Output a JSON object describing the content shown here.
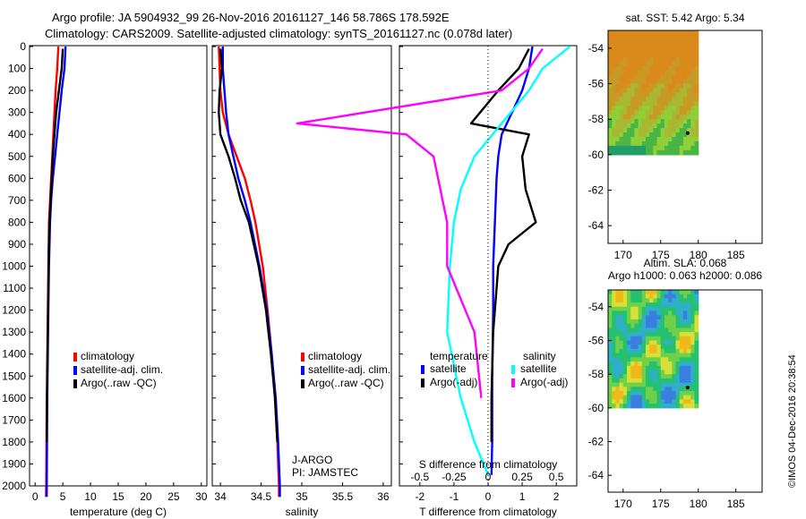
{
  "header": {
    "line1": "Argo profile: JA 5904932_99 26-Nov-2016 20161127_146 58.786S 178.592E",
    "line2": "Climatology: CARS2009. Satellite-adjusted climatology: synTS_20161127.nc (0.078d later)"
  },
  "footer_stamp": "©IMOS 04-Dec-2016 20:38:54",
  "colors": {
    "climatology": "#ff0000",
    "satellite": "#0000ff",
    "argo": "#000000",
    "satellite_s": "#00ffff",
    "argo_s": "#ff00ff"
  },
  "chart_data": [
    {
      "id": "temperature",
      "type": "line",
      "xlabel": "temperature (deg C)",
      "xlim": [
        -1,
        31
      ],
      "xticks": [
        0,
        5,
        10,
        15,
        20,
        25,
        30
      ],
      "ylim": [
        2060,
        0
      ],
      "yticks": [
        0,
        100,
        200,
        300,
        400,
        500,
        600,
        700,
        800,
        900,
        1000,
        1100,
        1200,
        1300,
        1400,
        1500,
        1600,
        1700,
        1800,
        1900,
        2000
      ],
      "legend": [
        "climatology",
        "satellite-adj. clim.",
        "Argo(..raw -QC)"
      ],
      "series": [
        {
          "name": "climatology",
          "x": [
            4.2,
            4.0,
            3.7,
            3.5,
            3.3,
            3.1,
            2.9,
            2.7,
            2.5,
            2.4,
            2.3,
            2.2,
            2.1,
            2.05,
            2.0,
            1.95
          ],
          "y": [
            0,
            100,
            200,
            300,
            400,
            500,
            600,
            700,
            800,
            1000,
            1200,
            1400,
            1600,
            1800,
            2000,
            2050
          ]
        },
        {
          "name": "satellite-adj. clim.",
          "x": [
            5.5,
            5.3,
            4.8,
            4.4,
            4.0,
            3.6,
            3.2,
            2.9,
            2.7,
            2.5,
            2.4,
            2.3,
            2.2,
            2.15,
            2.1,
            2.1
          ],
          "y": [
            0,
            100,
            200,
            300,
            400,
            500,
            600,
            700,
            800,
            1000,
            1200,
            1400,
            1600,
            1800,
            2000,
            2050
          ]
        },
        {
          "name": "Argo(..raw -QC)",
          "x": [
            5.0,
            4.8,
            4.3,
            3.8,
            3.5,
            3.2,
            3.0,
            2.8,
            2.6,
            2.45,
            2.35,
            2.25,
            2.15,
            2.1
          ],
          "y": [
            10,
            100,
            200,
            300,
            400,
            500,
            600,
            700,
            800,
            1000,
            1200,
            1400,
            1600,
            1800
          ]
        }
      ]
    },
    {
      "id": "salinity",
      "type": "line",
      "xlabel": "salinity",
      "xlim": [
        33.9,
        36.1
      ],
      "xticks": [
        34,
        34.5,
        35,
        35.5,
        36
      ],
      "ylim": [
        2060,
        0
      ],
      "legend": [
        "climatology",
        "satellite-adj. clim.",
        "Argo(..raw -QC)"
      ],
      "annotations": [
        "J-ARGO",
        "PI: JAMSTEC"
      ],
      "series": [
        {
          "name": "climatology",
          "x": [
            33.98,
            33.99,
            34.0,
            34.03,
            34.1,
            34.2,
            34.3,
            34.37,
            34.43,
            34.52,
            34.58,
            34.63,
            34.67,
            34.7,
            34.72,
            34.72
          ],
          "y": [
            0,
            100,
            200,
            300,
            400,
            500,
            600,
            700,
            800,
            1000,
            1200,
            1400,
            1600,
            1800,
            2000,
            2050
          ]
        },
        {
          "name": "satellite-adj. clim.",
          "x": [
            34.03,
            34.03,
            34.05,
            34.07,
            34.1,
            34.16,
            34.22,
            34.3,
            34.37,
            34.48,
            34.57,
            34.63,
            34.68,
            34.71,
            34.73,
            34.73
          ],
          "y": [
            0,
            100,
            200,
            300,
            400,
            500,
            600,
            700,
            800,
            1000,
            1200,
            1400,
            1600,
            1800,
            2000,
            2050
          ]
        },
        {
          "name": "Argo(..raw -QC)",
          "x": [
            34.0,
            34.02,
            33.99,
            33.98,
            34.0,
            34.1,
            34.18,
            34.25,
            34.35,
            34.47,
            34.56,
            34.62,
            34.67,
            34.7
          ],
          "y": [
            10,
            100,
            200,
            300,
            400,
            500,
            600,
            700,
            800,
            1000,
            1200,
            1400,
            1600,
            1800
          ]
        }
      ]
    },
    {
      "id": "differences",
      "type": "line",
      "xlabel": "T difference from climatology",
      "xlabel2": "S difference from climatology",
      "xlim": [
        -2.6,
        2.6
      ],
      "xticks": [
        -2,
        -1,
        0,
        1,
        2
      ],
      "xticks_s": [
        "-0.5",
        "-0.25",
        "0",
        "0.25",
        "0.5"
      ],
      "ylim": [
        2060,
        0
      ],
      "legend_headers": [
        "temperature",
        "salinity"
      ],
      "legend": [
        "satellite",
        "Argo(-adj)",
        "satellite",
        "Argo(-adj)"
      ],
      "series": [
        {
          "name": "satellite",
          "x": [
            1.3,
            1.2,
            1.0,
            0.7,
            0.4,
            0.3,
            0.25,
            0.2,
            0.15,
            0.15,
            0.12,
            0.12,
            0.1
          ],
          "y": [
            0,
            100,
            200,
            300,
            400,
            500,
            600,
            800,
            1000,
            1200,
            1500,
            1800,
            1950
          ]
        },
        {
          "name": "Argo(-adj)",
          "x": [
            1.2,
            0.9,
            0.3,
            -0.5,
            1.2,
            1.0,
            1.1,
            1.4,
            0.6,
            0.3,
            0.15,
            0.1,
            0.1
          ],
          "y": [
            10,
            100,
            200,
            350,
            400,
            500,
            650,
            800,
            900,
            1000,
            1300,
            1600,
            1800
          ]
        },
        {
          "name": "satellite",
          "x": [
            0.6,
            0.4,
            0.3,
            0.1,
            -0.1,
            -0.2,
            -0.25,
            -0.28,
            -0.3,
            -0.2,
            -0.1,
            0.0
          ],
          "y": [
            0,
            100,
            200,
            350,
            500,
            650,
            800,
            1000,
            1300,
            1600,
            1800,
            1950
          ]
        },
        {
          "name": "Argo(-adj)",
          "x": [
            0.4,
            0.3,
            0.1,
            -1.4,
            -0.6,
            -0.4,
            -0.35,
            -0.3,
            -0.3,
            -0.1,
            -0.05
          ],
          "y": [
            10,
            100,
            200,
            350,
            400,
            500,
            650,
            800,
            1000,
            1300,
            1600
          ]
        }
      ]
    }
  ],
  "maps": [
    {
      "id": "sst-map",
      "title": [
        "sat. SST: 5.42 Argo: 5.34"
      ],
      "xticks": [
        170,
        175,
        180,
        185
      ],
      "yticks": [
        -54,
        -56,
        -58,
        -60,
        -62,
        -64
      ],
      "xlim": [
        168,
        188.5
      ],
      "ylim": [
        -65,
        -53
      ],
      "data_extent_lon": [
        168,
        180
      ],
      "data_extent_lat": [
        -60,
        -53
      ]
    },
    {
      "id": "sla-map",
      "title": [
        "Altim. SLA: 0.068",
        "Argo h1000: 0.063 h2000: 0.086"
      ],
      "xticks": [
        170,
        175,
        180,
        185
      ],
      "yticks": [
        -54,
        -56,
        -58,
        -60,
        -62,
        -64
      ],
      "xlim": [
        168,
        188.5
      ],
      "ylim": [
        -65,
        -53
      ],
      "data_extent_lon": [
        168,
        180
      ],
      "data_extent_lat": [
        -60,
        -53
      ]
    }
  ]
}
